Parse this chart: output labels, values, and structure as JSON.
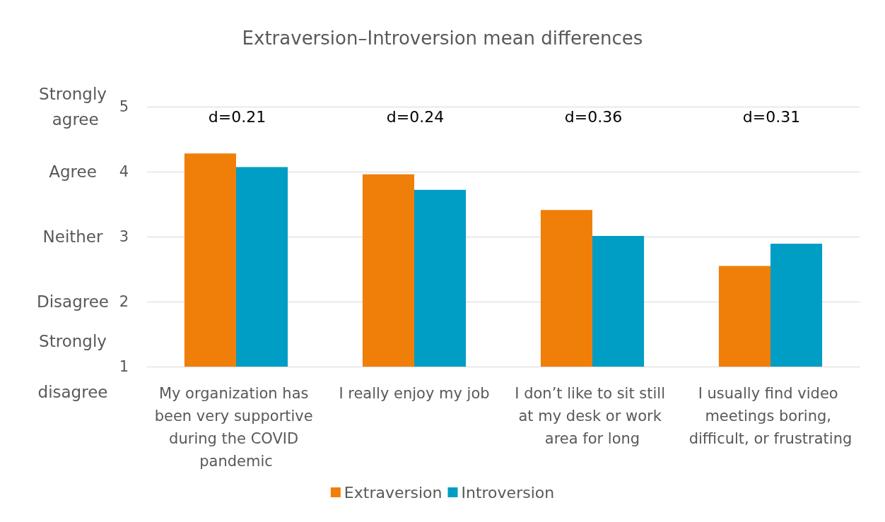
{
  "chart_data": {
    "type": "bar",
    "title": "Extraversion–Introversion mean differences",
    "categories": [
      "My organization has been very supportive during the COVID pandemic",
      "I really enjoy my job",
      "I don’t like to sit still at my desk or work area for long",
      "I usually find video meetings boring, difficult, or frustrating"
    ],
    "series": [
      {
        "name": "Extraversion",
        "color": "#f07f09",
        "values": [
          4.28,
          3.96,
          3.41,
          2.55
        ]
      },
      {
        "name": "Introversion",
        "color": "#009dc4",
        "values": [
          4.07,
          3.72,
          3.01,
          2.89
        ]
      }
    ],
    "ylim": [
      1,
      5
    ],
    "yticks": [
      1,
      2,
      3,
      4,
      5
    ],
    "grid": "y",
    "legend": "bottom",
    "annotations": [
      "Strongly disagree",
      "Disagree",
      "Neither",
      "Agree",
      "Strongly agree",
      "d=0.21",
      "d=0.24",
      "d=0.36",
      "d=0.31"
    ]
  }
}
